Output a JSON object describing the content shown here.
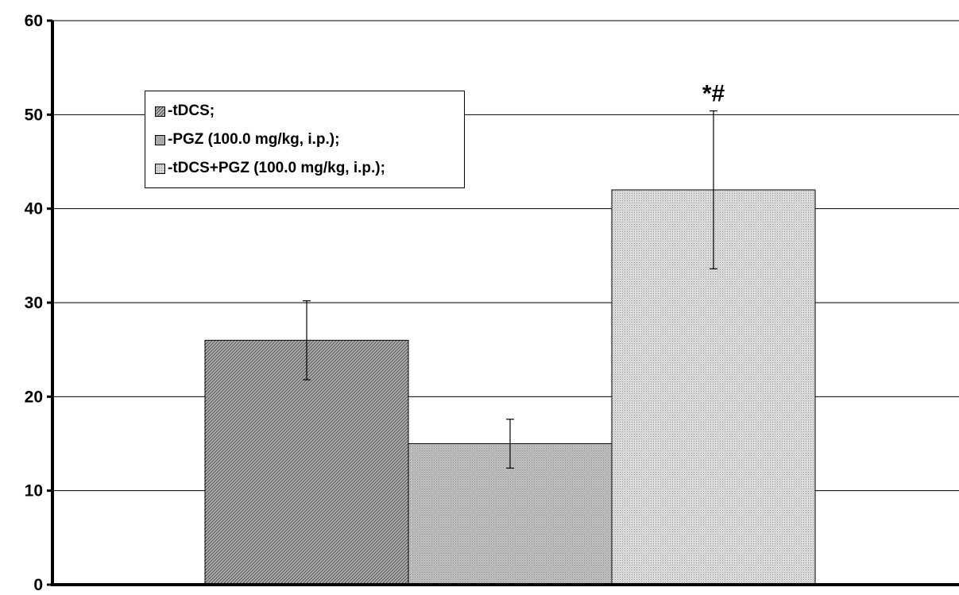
{
  "chart_data": {
    "type": "bar",
    "title": "",
    "xlabel": "",
    "ylabel": "",
    "ylim": [
      0,
      60
    ],
    "yticks": [
      0,
      10,
      20,
      30,
      40,
      50,
      60
    ],
    "grid": true,
    "legend_position": "top-left",
    "series": [
      {
        "name": "-tDCS;",
        "value": 26,
        "error": 4.2,
        "pattern": "diagonal-hatch",
        "color": "#8c8c8c",
        "annotation": ""
      },
      {
        "name": "-PGZ (100.0 mg/kg, i.p.);",
        "value": 15,
        "error": 2.6,
        "pattern": "fine-grey",
        "color": "#a8a8a8",
        "annotation": ""
      },
      {
        "name": "-tDCS+PGZ (100.0 mg/kg, i.p.);",
        "value": 42,
        "error": 8.4,
        "pattern": "dotted",
        "color": "#c8c8c8",
        "annotation": "*#"
      }
    ]
  }
}
